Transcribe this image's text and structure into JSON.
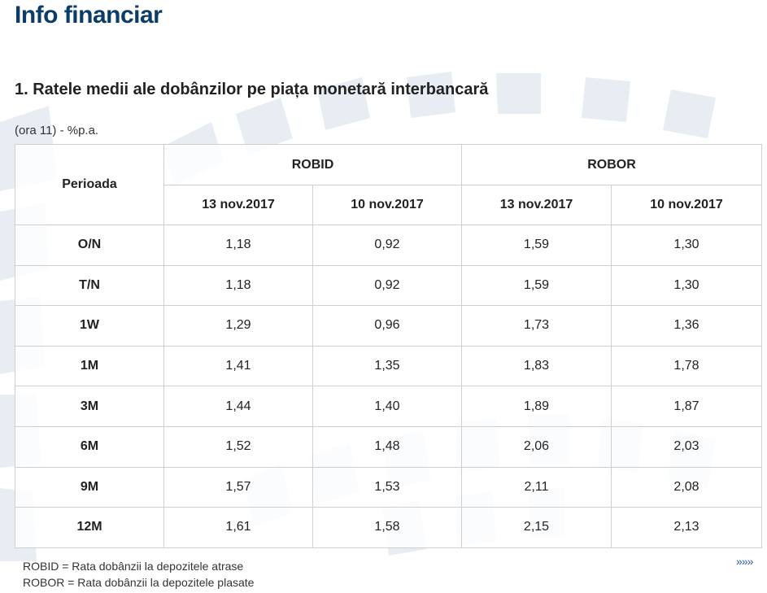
{
  "page": {
    "title": "Info financiar"
  },
  "section": {
    "heading": "1. Ratele medii ale dobânzilor pe piața monetară interbancară",
    "unit_note": "(ora 11) - %p.a."
  },
  "table": {
    "period_header": "Perioada",
    "groups": [
      "ROBID",
      "ROBOR"
    ],
    "dates": [
      "13 nov.2017",
      "10 nov.2017",
      "13 nov.2017",
      "10 nov.2017"
    ],
    "rows": [
      {
        "period": "O/N",
        "values": [
          "1,18",
          "0,92",
          "1,59",
          "1,30"
        ]
      },
      {
        "period": "T/N",
        "values": [
          "1,18",
          "0,92",
          "1,59",
          "1,30"
        ]
      },
      {
        "period": "1W",
        "values": [
          "1,29",
          "0,96",
          "1,73",
          "1,36"
        ]
      },
      {
        "period": "1M",
        "values": [
          "1,41",
          "1,35",
          "1,83",
          "1,78"
        ]
      },
      {
        "period": "3M",
        "values": [
          "1,44",
          "1,40",
          "1,89",
          "1,87"
        ]
      },
      {
        "period": "6M",
        "values": [
          "1,52",
          "1,48",
          "2,06",
          "2,03"
        ]
      },
      {
        "period": "9M",
        "values": [
          "1,57",
          "1,53",
          "2,11",
          "2,08"
        ]
      },
      {
        "period": "12M",
        "values": [
          "1,61",
          "1,58",
          "2,15",
          "2,13"
        ]
      }
    ]
  },
  "legend": {
    "robid": "ROBID = Rata dobânzii la depozitele atrase",
    "robor": "ROBOR = Rata dobânzii la depozitele plasate"
  },
  "more_link": "»»»",
  "colors": {
    "title": "#0b3d6b",
    "pattern": "#e6ebf2",
    "link": "#2a5fa8"
  }
}
